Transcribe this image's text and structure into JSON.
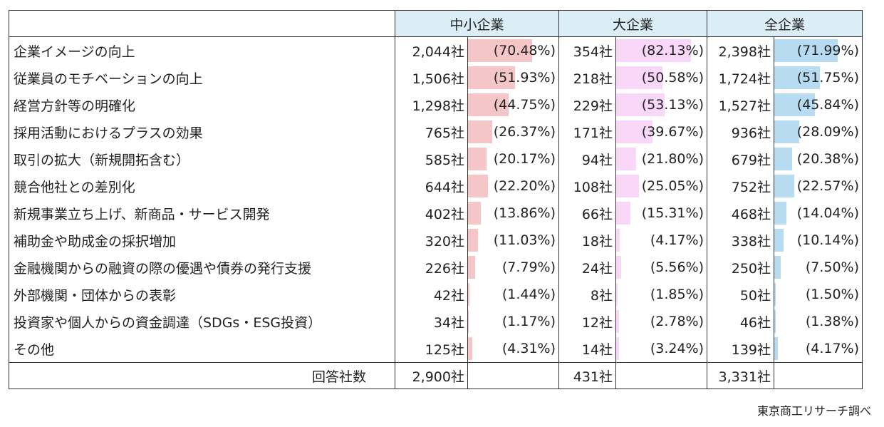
{
  "table": {
    "headers": [
      "中小企業",
      "大企業",
      "全企業"
    ],
    "rows": [
      {
        "label": "企業イメージの向上",
        "cells": [
          {
            "count": "2,044社",
            "pct": "(70.48%)",
            "value": 70.48
          },
          {
            "count": "354社",
            "pct": "(82.13%)",
            "value": 82.13
          },
          {
            "count": "2,398社",
            "pct": "(71.99%)",
            "value": 71.99
          }
        ]
      },
      {
        "label": "従業員のモチベーションの向上",
        "cells": [
          {
            "count": "1,506社",
            "pct": "(51.93%)",
            "value": 51.93
          },
          {
            "count": "218社",
            "pct": "(50.58%)",
            "value": 50.58
          },
          {
            "count": "1,724社",
            "pct": "(51.75%)",
            "value": 51.75
          }
        ]
      },
      {
        "label": "経営方針等の明確化",
        "cells": [
          {
            "count": "1,298社",
            "pct": "(44.75%)",
            "value": 44.75
          },
          {
            "count": "229社",
            "pct": "(53.13%)",
            "value": 53.13
          },
          {
            "count": "1,527社",
            "pct": "(45.84%)",
            "value": 45.84
          }
        ]
      },
      {
        "label": "採用活動におけるプラスの効果",
        "cells": [
          {
            "count": "765社",
            "pct": "(26.37%)",
            "value": 26.37
          },
          {
            "count": "171社",
            "pct": "(39.67%)",
            "value": 39.67
          },
          {
            "count": "936社",
            "pct": "(28.09%)",
            "value": 28.09
          }
        ]
      },
      {
        "label": "取引の拡大（新規開拓含む）",
        "cells": [
          {
            "count": "585社",
            "pct": "(20.17%)",
            "value": 20.17
          },
          {
            "count": "94社",
            "pct": "(21.80%)",
            "value": 21.8
          },
          {
            "count": "679社",
            "pct": "(20.38%)",
            "value": 20.38
          }
        ]
      },
      {
        "label": "競合他社との差別化",
        "cells": [
          {
            "count": "644社",
            "pct": "(22.20%)",
            "value": 22.2
          },
          {
            "count": "108社",
            "pct": "(25.05%)",
            "value": 25.05
          },
          {
            "count": "752社",
            "pct": "(22.57%)",
            "value": 22.57
          }
        ]
      },
      {
        "label": "新規事業立ち上げ、新商品・サービス開発",
        "cells": [
          {
            "count": "402社",
            "pct": "(13.86%)",
            "value": 13.86
          },
          {
            "count": "66社",
            "pct": "(15.31%)",
            "value": 15.31
          },
          {
            "count": "468社",
            "pct": "(14.04%)",
            "value": 14.04
          }
        ]
      },
      {
        "label": "補助金や助成金の採択増加",
        "cells": [
          {
            "count": "320社",
            "pct": "(11.03%)",
            "value": 11.03
          },
          {
            "count": "18社",
            "pct": "(4.17%)",
            "value": 4.17
          },
          {
            "count": "338社",
            "pct": "(10.14%)",
            "value": 10.14
          }
        ]
      },
      {
        "label": "金融機関からの融資の際の優遇や債券の発行支援",
        "cells": [
          {
            "count": "226社",
            "pct": "(7.79%)",
            "value": 7.79
          },
          {
            "count": "24社",
            "pct": "(5.56%)",
            "value": 5.56
          },
          {
            "count": "250社",
            "pct": "(7.50%)",
            "value": 7.5
          }
        ]
      },
      {
        "label": "外部機関・団体からの表彰",
        "cells": [
          {
            "count": "42社",
            "pct": "(1.44%)",
            "value": 1.44
          },
          {
            "count": "8社",
            "pct": "(1.85%)",
            "value": 1.85
          },
          {
            "count": "50社",
            "pct": "(1.50%)",
            "value": 1.5
          }
        ]
      },
      {
        "label": "投資家や個人からの資金調達（SDGs・ESG投資）",
        "cells": [
          {
            "count": "34社",
            "pct": "(1.17%)",
            "value": 1.17
          },
          {
            "count": "12社",
            "pct": "(2.78%)",
            "value": 2.78
          },
          {
            "count": "46社",
            "pct": "(1.38%)",
            "value": 1.38
          }
        ]
      },
      {
        "label": "その他",
        "cells": [
          {
            "count": "125社",
            "pct": "(4.31%)",
            "value": 4.31
          },
          {
            "count": "14社",
            "pct": "(3.24%)",
            "value": 3.24
          },
          {
            "count": "139社",
            "pct": "(4.17%)",
            "value": 4.17
          }
        ]
      }
    ],
    "total": {
      "label": "回答社数",
      "counts": [
        "2,900社",
        "431社",
        "3,331社"
      ]
    }
  },
  "colors": {
    "header_bg": "#dbeef6",
    "sme_bar": "#f5c6c8",
    "large_bar": "#f8d7f8",
    "all_bar": "#b7dcf1"
  },
  "source": "東京商工リサーチ調べ"
}
